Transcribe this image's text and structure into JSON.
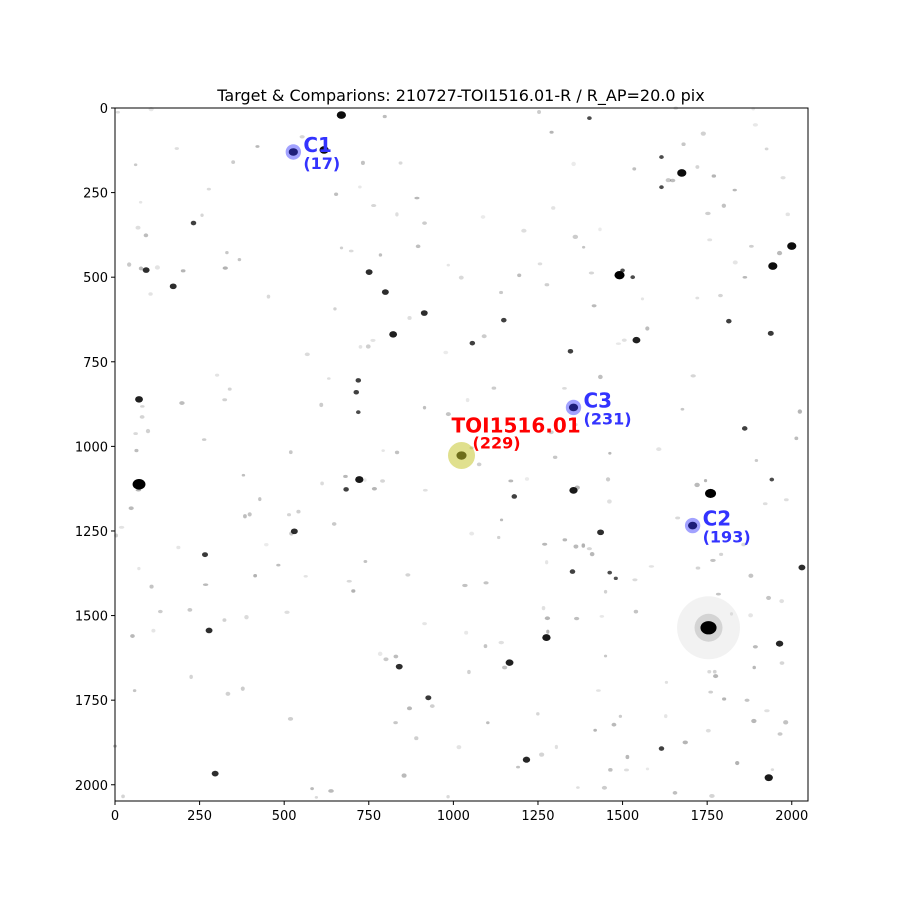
{
  "chart_data": {
    "type": "scatter",
    "title": "Target & Comparions: 210727-TOI1516.01-R / R_AP=20.0 pix",
    "xlim": [
      0,
      2048
    ],
    "ylim": [
      2048,
      0
    ],
    "xticks": [
      0,
      250,
      500,
      750,
      1000,
      1250,
      1500,
      1750,
      2000
    ],
    "yticks": [
      0,
      250,
      500,
      750,
      1000,
      1250,
      1500,
      1750,
      2000
    ],
    "grid": false,
    "background": "inverted grayscale star field",
    "target": {
      "label": "TOI1516.01",
      "id": "(229)",
      "x": 1024,
      "y": 1027,
      "color": "#ff0000",
      "marker_color": "#c8c832"
    },
    "comparisons": [
      {
        "label": "C1",
        "id": "(17)",
        "x": 527,
        "y": 130
      },
      {
        "label": "C2",
        "id": "(193)",
        "x": 1707,
        "y": 1234
      },
      {
        "label": "C3",
        "id": "(231)",
        "x": 1355,
        "y": 885
      }
    ],
    "comparison_color": "#3333ff",
    "stars": [
      [
        669,
        21,
        2
      ],
      [
        1402,
        30,
        1
      ],
      [
        618,
        124,
        2
      ],
      [
        1615,
        145,
        1
      ],
      [
        1675,
        192,
        2
      ],
      [
        1615,
        234,
        1
      ],
      [
        2000,
        408,
        2
      ],
      [
        1944,
        467,
        2
      ],
      [
        751,
        485,
        1.5
      ],
      [
        1491,
        494,
        2.2
      ],
      [
        92,
        479,
        1.5
      ],
      [
        172,
        527,
        1.5
      ],
      [
        799,
        544,
        1.5
      ],
      [
        1530,
        500,
        1
      ],
      [
        914,
        606,
        1.5
      ],
      [
        822,
        669,
        1.7
      ],
      [
        1541,
        686,
        1.7
      ],
      [
        71,
        861,
        1.7
      ],
      [
        719,
        805,
        1.2
      ],
      [
        713,
        840,
        1.2
      ],
      [
        719,
        899,
        1
      ],
      [
        722,
        1098,
        1.8
      ],
      [
        71,
        1112,
        2.8
      ],
      [
        1760,
        1139,
        2.4
      ],
      [
        1355,
        1130,
        1.8
      ],
      [
        1180,
        1148,
        1.2
      ],
      [
        683,
        1127,
        1.2
      ],
      [
        530,
        1251,
        1.5
      ],
      [
        1435,
        1254,
        1.5
      ],
      [
        266,
        1320,
        1.3
      ],
      [
        2030,
        1358,
        1.5
      ],
      [
        1754,
        1536,
        3.5
      ],
      [
        1275,
        1565,
        1.8
      ],
      [
        278,
        1544,
        1.5
      ],
      [
        1166,
        1639,
        1.7
      ],
      [
        840,
        1651,
        1.5
      ],
      [
        926,
        1743,
        1.3
      ],
      [
        1216,
        1926,
        1.6
      ],
      [
        296,
        1967,
        1.5
      ],
      [
        1932,
        1979,
        1.8
      ],
      [
        1964,
        1583,
        1.6
      ],
      [
        1056,
        695,
        1.2
      ],
      [
        1149,
        627,
        1.2
      ],
      [
        1346,
        719,
        1.2
      ],
      [
        1814,
        630,
        1.2
      ],
      [
        1938,
        666,
        1.3
      ],
      [
        1615,
        1893,
        1.2
      ],
      [
        232,
        340,
        1.2
      ],
      [
        1462,
        1373,
        1
      ],
      [
        1352,
        1370,
        1.2
      ],
      [
        1861,
        947,
        1.2
      ],
      [
        1941,
        1098,
        1
      ],
      [
        527,
        130,
        2
      ],
      [
        1707,
        1234,
        2
      ],
      [
        1355,
        885,
        2
      ],
      [
        1024,
        1027,
        2.2
      ],
      [
        1480,
        1390,
        0.9
      ],
      [
        1500,
        480,
        1
      ]
    ]
  }
}
